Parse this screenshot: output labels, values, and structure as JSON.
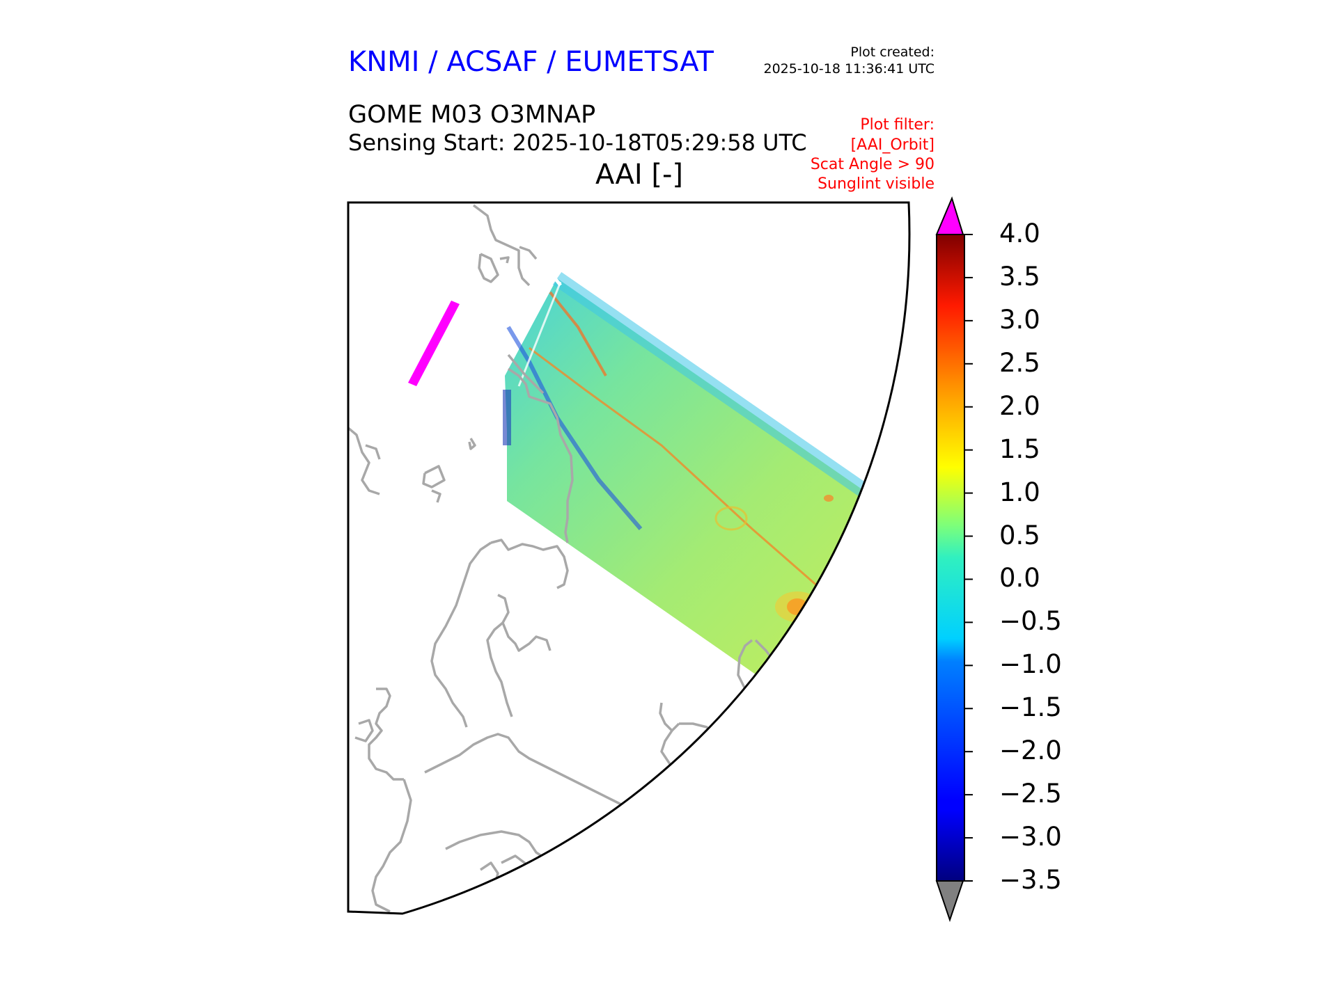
{
  "header": {
    "brand": "KNMI / ACSAF / EUMETSAT",
    "created_label": "Plot created:",
    "created_time": "2025-10-18 11:36:41 UTC",
    "product": "GOME M03 O3MNAP",
    "sensing_start": "Sensing Start: 2025-10-18T05:29:58 UTC",
    "variable": "AAI [-]"
  },
  "plot_filter": {
    "lines": [
      "Plot filter:",
      "[AAI_Orbit]",
      "Scat Angle > 90",
      "Sunglint visible"
    ]
  },
  "colors": {
    "title_blue": "#0000ff",
    "filter_red": "#ff0000",
    "coastline": "#a8a8a8",
    "over_range": "#ff00ff",
    "under_range": "#808080"
  },
  "chart_data": {
    "type": "heatmap",
    "title": "AAI [-]",
    "colormap": "jet",
    "vmin": -3.5,
    "vmax": 4.0,
    "extend": "both",
    "colorbar_ticks": [
      "4.0",
      "3.5",
      "3.0",
      "2.5",
      "2.0",
      "1.5",
      "1.0",
      "0.5",
      "0.0",
      "−0.5",
      "−1.0",
      "−1.5",
      "−2.0",
      "−2.5",
      "−3.0",
      "−3.5"
    ],
    "tick_values": [
      4.0,
      3.5,
      3.0,
      2.5,
      2.0,
      1.5,
      1.0,
      0.5,
      0.0,
      -0.5,
      -1.0,
      -1.5,
      -2.0,
      -2.5,
      -3.0,
      -3.5
    ],
    "typical_swath_value": 0.3
  }
}
